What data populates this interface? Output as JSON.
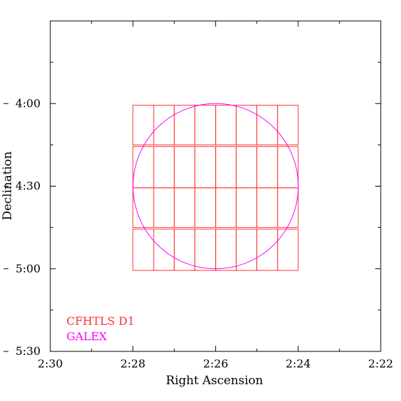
{
  "chart_data": {
    "type": "scatter",
    "xlabel": "Right Ascension",
    "ylabel": "Declination",
    "x_axis": {
      "unit": "hours",
      "ticks": [
        2.5,
        2.4667,
        2.4333,
        2.4,
        2.3667
      ],
      "tick_labels": [
        "2:30",
        "2:28",
        "2:26",
        "2:24",
        "2:22"
      ],
      "range": [
        2.5,
        2.3667
      ],
      "direction": "decreasing"
    },
    "y_axis": {
      "unit": "degrees (negative declination, magnitude shown)",
      "ticks": [
        4.0,
        4.5,
        5.0,
        5.5
      ],
      "tick_labels": [
        "4:00",
        "4:30",
        "5:00",
        "5:30"
      ],
      "range": [
        3.5,
        5.5
      ]
    },
    "legend": {
      "placement": "bottom-left",
      "entries": [
        {
          "label": "CFHTLS D1",
          "color": "#ff3030"
        },
        {
          "label": "GALEX",
          "color": "#ff00ff"
        }
      ]
    },
    "series": [
      {
        "name": "CFHTLS D1",
        "kind": "rectangles",
        "color": "#ff3030",
        "row_bands_dec": [
          [
            4.01,
            4.25
          ],
          [
            4.26,
            4.51
          ],
          [
            4.51,
            4.75
          ],
          [
            4.76,
            5.01
          ]
        ],
        "column_edges_ra": [
          2.4667,
          2.4625,
          2.4583,
          2.4542,
          2.45,
          2.4458,
          2.4417,
          2.4375,
          2.4333,
          2.4292,
          2.425,
          2.4208,
          2.4167,
          2.4125,
          2.4083,
          2.4042,
          2.4
        ]
      },
      {
        "name": "GALEX",
        "kind": "circle",
        "color": "#ff00ff",
        "center": {
          "ra": 2.4333,
          "dec": 4.5
        },
        "radius_deg": 0.5
      }
    ]
  }
}
